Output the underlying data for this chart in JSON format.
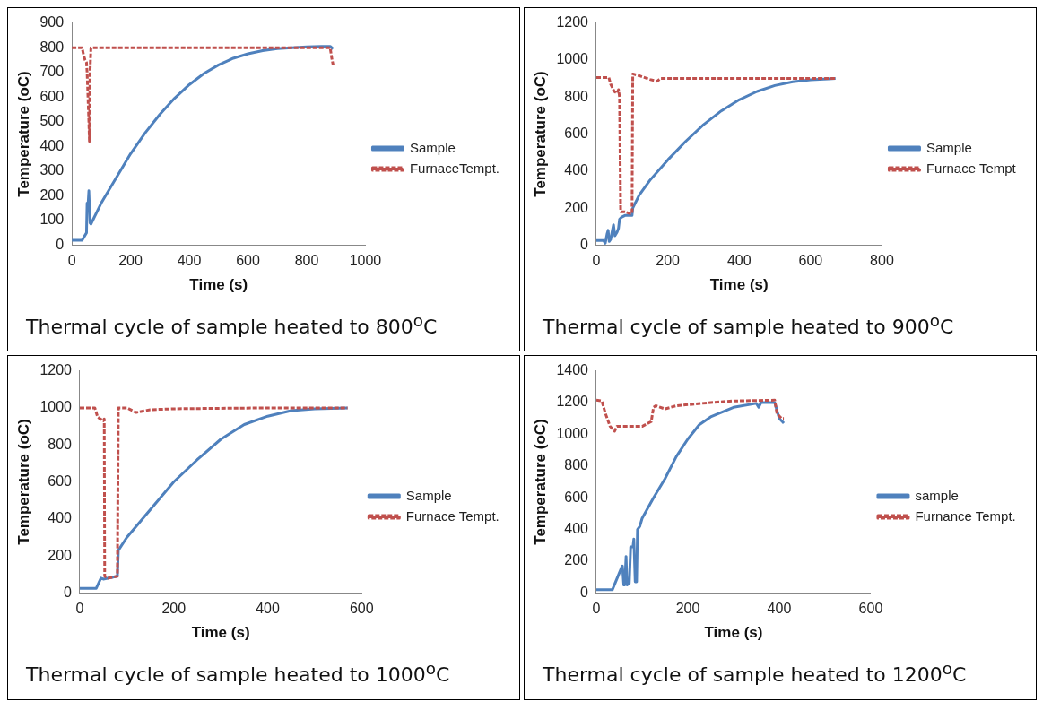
{
  "chart_data": [
    {
      "type": "line",
      "title": "Thermal cycle of sample heated to 800$^{o}$C",
      "xlabel": "Time (s)",
      "ylabel": "Temperature (oC)",
      "xlim": [
        0,
        1000
      ],
      "xticks": [
        0,
        200,
        400,
        600,
        800,
        1000
      ],
      "ylim": [
        0,
        900
      ],
      "yticks": [
        0,
        100,
        200,
        300,
        400,
        500,
        600,
        700,
        800,
        900
      ],
      "grid": false,
      "legend": "right",
      "marker": "none",
      "series": [
        {
          "name": "Sample",
          "color": "#4f81bd",
          "line_style": "solid",
          "x": [
            0,
            35,
            50,
            52,
            55,
            58,
            60,
            62,
            65,
            100,
            150,
            200,
            250,
            300,
            350,
            400,
            450,
            500,
            550,
            600,
            650,
            700,
            750,
            800,
            850,
            880,
            890
          ],
          "values": [
            20,
            20,
            50,
            170,
            160,
            220,
            220,
            90,
            85,
            170,
            270,
            370,
            455,
            530,
            595,
            650,
            695,
            730,
            757,
            775,
            788,
            796,
            800,
            803,
            805,
            805,
            795
          ]
        },
        {
          "name": "FurnaceTempt.",
          "color": "#c0504d",
          "line_style": "dashed",
          "x": [
            0,
            35,
            40,
            45,
            50,
            52,
            55,
            58,
            60,
            62,
            65,
            100,
            300,
            500,
            700,
            880,
            885,
            890
          ],
          "values": [
            800,
            800,
            770,
            750,
            740,
            700,
            600,
            500,
            420,
            700,
            800,
            800,
            800,
            800,
            800,
            800,
            760,
            730
          ]
        }
      ]
    },
    {
      "type": "line",
      "title": "Thermal cycle of sample heated to 900$^{o}$C",
      "xlabel": "Time (s)",
      "ylabel": "Temperature (oC)",
      "xlim": [
        0,
        800
      ],
      "xticks": [
        0,
        200,
        400,
        600,
        800
      ],
      "ylim": [
        0,
        1200
      ],
      "yticks": [
        0,
        200,
        400,
        600,
        800,
        1000,
        1200
      ],
      "grid": false,
      "legend": "right",
      "marker": "none",
      "series": [
        {
          "name": "Sample",
          "color": "#4f81bd",
          "line_style": "solid",
          "x": [
            0,
            20,
            25,
            30,
            33,
            36,
            40,
            45,
            48,
            52,
            58,
            62,
            65,
            70,
            80,
            100,
            102,
            120,
            150,
            200,
            250,
            300,
            350,
            400,
            450,
            500,
            550,
            600,
            650,
            670
          ],
          "values": [
            25,
            25,
            10,
            60,
            80,
            20,
            30,
            80,
            110,
            50,
            70,
            90,
            140,
            150,
            160,
            160,
            200,
            270,
            350,
            460,
            560,
            650,
            725,
            785,
            830,
            862,
            882,
            893,
            898,
            900
          ]
        },
        {
          "name": "Furnace Tempt",
          "color": "#c0504d",
          "line_style": "dashed",
          "x": [
            0,
            35,
            40,
            50,
            58,
            62,
            65,
            68,
            80,
            95,
            100,
            102,
            120,
            150,
            170,
            180,
            200,
            400,
            670
          ],
          "values": [
            905,
            905,
            870,
            830,
            820,
            840,
            800,
            180,
            180,
            170,
            170,
            925,
            915,
            895,
            885,
            900,
            900,
            900,
            900
          ]
        }
      ]
    },
    {
      "type": "line",
      "title": "Thermal cycle of sample heated to 1000$^{o}$C",
      "xlabel": "Time (s)",
      "ylabel": "Temperature (oC)",
      "xlim": [
        0,
        600
      ],
      "xticks": [
        0,
        200,
        400,
        600
      ],
      "ylim": [
        0,
        1200
      ],
      "yticks": [
        0,
        200,
        400,
        600,
        800,
        1000,
        1200
      ],
      "grid": false,
      "legend": "right",
      "marker": "none",
      "series": [
        {
          "name": "Sample",
          "color": "#4f81bd",
          "line_style": "solid",
          "x": [
            0,
            35,
            45,
            50,
            80,
            82,
            100,
            150,
            200,
            250,
            300,
            350,
            400,
            450,
            500,
            570
          ],
          "values": [
            25,
            25,
            80,
            75,
            90,
            230,
            300,
            450,
            600,
            720,
            830,
            910,
            955,
            985,
            995,
            1000
          ]
        },
        {
          "name": "Furnace Tempt.",
          "color": "#c0504d",
          "line_style": "dashed",
          "x": [
            0,
            32,
            38,
            50,
            52,
            53,
            60,
            80,
            82,
            100,
            120,
            150,
            200,
            400,
            570
          ],
          "values": [
            1000,
            1000,
            950,
            930,
            940,
            90,
            80,
            90,
            1000,
            1000,
            975,
            990,
            995,
            1000,
            1000
          ]
        }
      ]
    },
    {
      "type": "line",
      "title": "Thermal cycle of sample heated to 1200$^{o}$C",
      "xlabel": "Time (s)",
      "ylabel": "Temperature (oC)",
      "xlim": [
        0,
        600
      ],
      "xticks": [
        0,
        200,
        400,
        600
      ],
      "ylim": [
        0,
        1400
      ],
      "yticks": [
        0,
        200,
        400,
        600,
        800,
        1000,
        1200,
        1400
      ],
      "grid": false,
      "legend": "right",
      "marker": "none",
      "series": [
        {
          "name": "sample",
          "color": "#4f81bd",
          "line_style": "solid",
          "x": [
            0,
            35,
            55,
            57,
            60,
            62,
            65,
            67,
            72,
            75,
            80,
            82,
            85,
            88,
            90,
            95,
            100,
            125,
            150,
            175,
            200,
            225,
            250,
            300,
            350,
            355,
            360,
            390,
            395,
            400,
            410
          ],
          "values": [
            20,
            20,
            160,
            170,
            50,
            50,
            230,
            50,
            60,
            290,
            290,
            340,
            70,
            70,
            400,
            420,
            470,
            600,
            720,
            860,
            970,
            1060,
            1110,
            1170,
            1195,
            1170,
            1200,
            1200,
            1150,
            1100,
            1070
          ]
        },
        {
          "name": "Furnance Tempt.",
          "color": "#c0504d",
          "line_style": "dashed",
          "x": [
            0,
            12,
            20,
            30,
            40,
            45,
            60,
            100,
            120,
            125,
            130,
            150,
            175,
            250,
            300,
            390,
            395,
            405,
            410
          ],
          "values": [
            1215,
            1210,
            1130,
            1050,
            1020,
            1050,
            1050,
            1050,
            1080,
            1170,
            1180,
            1160,
            1180,
            1200,
            1210,
            1215,
            1130,
            1100,
            1100
          ]
        }
      ]
    }
  ]
}
